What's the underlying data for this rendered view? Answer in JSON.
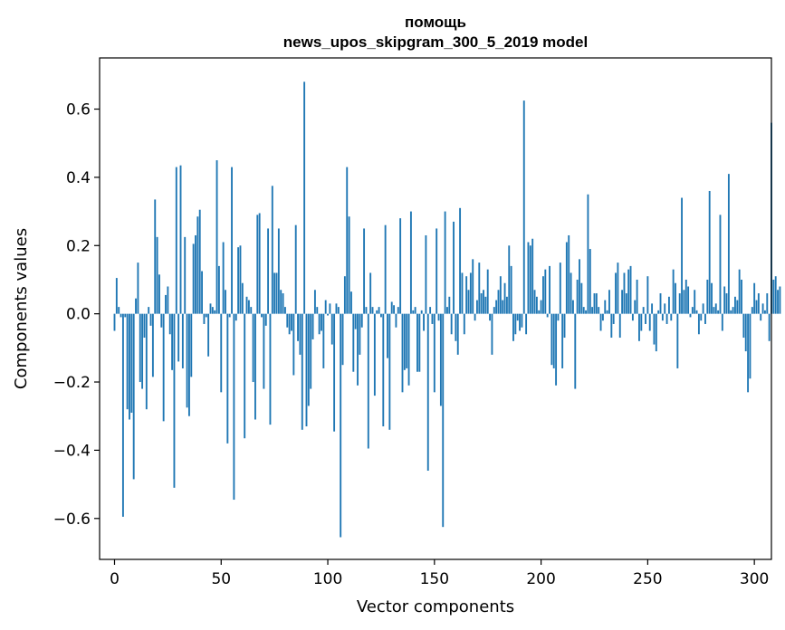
{
  "chart_data": {
    "type": "bar",
    "title": "помощь",
    "subtitle": "news_upos_skipgram_300_5_2019 model",
    "xlabel": "Vector components",
    "ylabel": "Components values",
    "xlim": [
      -7,
      308
    ],
    "ylim": [
      -0.72,
      0.75
    ],
    "xticks": [
      0,
      50,
      100,
      150,
      200,
      250,
      300
    ],
    "xtick_labels": [
      "0",
      "50",
      "100",
      "150",
      "200",
      "250",
      "300"
    ],
    "yticks": [
      -0.6,
      -0.4,
      -0.2,
      0.0,
      0.2,
      0.4,
      0.6
    ],
    "ytick_labels": [
      "−0.6",
      "−0.4",
      "−0.2",
      "0.0",
      "0.2",
      "0.4",
      "0.6"
    ],
    "grid": false,
    "bar_color": "#1f77b4",
    "values": [
      -0.05,
      0.105,
      0.02,
      -0.01,
      -0.595,
      -0.01,
      -0.28,
      -0.31,
      -0.29,
      -0.485,
      0.045,
      0.15,
      -0.2,
      -0.22,
      -0.07,
      -0.28,
      0.02,
      -0.035,
      -0.185,
      0.335,
      0.225,
      0.115,
      -0.04,
      -0.315,
      0.055,
      0.08,
      -0.06,
      -0.165,
      -0.51,
      0.43,
      -0.14,
      0.435,
      -0.16,
      0.225,
      -0.275,
      -0.3,
      -0.185,
      0.205,
      0.23,
      0.285,
      0.305,
      0.125,
      -0.03,
      -0.01,
      -0.125,
      0.03,
      0.02,
      0.01,
      0.45,
      0.14,
      -0.23,
      0.21,
      0.07,
      -0.38,
      -0.01,
      0.43,
      -0.545,
      -0.02,
      0.195,
      0.2,
      0.09,
      -0.365,
      0.05,
      0.04,
      0.02,
      -0.2,
      -0.31,
      0.29,
      0.295,
      -0.01,
      -0.22,
      -0.035,
      0.25,
      -0.325,
      0.375,
      0.12,
      0.12,
      0.25,
      0.07,
      0.06,
      0.02,
      -0.04,
      -0.06,
      -0.05,
      -0.18,
      0.26,
      -0.08,
      -0.12,
      -0.34,
      0.68,
      -0.33,
      -0.27,
      -0.22,
      -0.075,
      0.07,
      0.02,
      -0.06,
      -0.05,
      -0.16,
      0.04,
      -0.005,
      0.03,
      -0.09,
      -0.345,
      0.03,
      0.02,
      -0.655,
      -0.15,
      0.11,
      0.43,
      0.285,
      0.065,
      -0.17,
      -0.045,
      -0.21,
      -0.12,
      -0.04,
      0.25,
      0.02,
      -0.395,
      0.12,
      0.02,
      -0.24,
      0.01,
      0.02,
      -0.01,
      -0.33,
      0.26,
      -0.13,
      -0.34,
      0.035,
      0.025,
      -0.04,
      0.02,
      0.28,
      -0.23,
      -0.165,
      -0.16,
      -0.21,
      0.3,
      0.01,
      0.02,
      -0.17,
      -0.17,
      0.01,
      -0.05,
      0.23,
      -0.46,
      0.02,
      -0.03,
      -0.23,
      0.25,
      -0.02,
      -0.27,
      -0.625,
      0.3,
      0.02,
      0.05,
      -0.06,
      0.27,
      -0.08,
      -0.12,
      0.31,
      0.12,
      -0.06,
      0.11,
      0.07,
      0.12,
      0.16,
      -0.02,
      0.04,
      0.15,
      0.06,
      0.07,
      0.05,
      0.13,
      -0.02,
      -0.12,
      0.02,
      0.04,
      0.07,
      0.11,
      0.04,
      0.09,
      0.05,
      0.2,
      0.14,
      -0.08,
      -0.06,
      -0.02,
      -0.05,
      -0.04,
      0.625,
      -0.06,
      0.21,
      0.2,
      0.22,
      0.07,
      0.05,
      0.01,
      0.04,
      0.11,
      0.13,
      -0.01,
      0.14,
      -0.15,
      -0.16,
      -0.21,
      -0.02,
      0.15,
      -0.16,
      -0.07,
      0.21,
      0.23,
      0.12,
      0.04,
      -0.22,
      0.1,
      0.16,
      0.09,
      0.02,
      0.01,
      0.35,
      0.19,
      0.02,
      0.06,
      0.06,
      0.02,
      -0.05,
      -0.02,
      0.04,
      0.01,
      0.07,
      -0.07,
      -0.03,
      0.12,
      0.15,
      -0.07,
      0.07,
      0.12,
      0.06,
      0.13,
      0.14,
      -0.02,
      0.04,
      0.1,
      -0.08,
      -0.05,
      0.02,
      -0.03,
      0.11,
      -0.05,
      0.03,
      -0.09,
      -0.11,
      0.01,
      0.06,
      -0.02,
      0.03,
      -0.03,
      0.05,
      -0.02,
      0.13,
      0.09,
      -0.16,
      0.06,
      0.34,
      0.07,
      0.1,
      0.08,
      -0.01,
      0.02,
      0.07,
      0.01,
      -0.06,
      -0.02,
      0.03,
      -0.03,
      0.1,
      0.36,
      0.09,
      0.02,
      0.03,
      0.01,
      0.29,
      -0.05,
      0.08,
      0.06,
      0.41,
      0.01,
      0.02,
      0.05,
      0.04,
      0.13,
      0.1,
      -0.07,
      -0.11,
      -0.23,
      -0.19,
      0.02,
      0.09,
      0.04,
      0.06,
      -0.02,
      0.03,
      0.01,
      0.06,
      -0.08,
      0.56,
      0.1,
      0.11,
      0.07,
      0.08
    ]
  }
}
